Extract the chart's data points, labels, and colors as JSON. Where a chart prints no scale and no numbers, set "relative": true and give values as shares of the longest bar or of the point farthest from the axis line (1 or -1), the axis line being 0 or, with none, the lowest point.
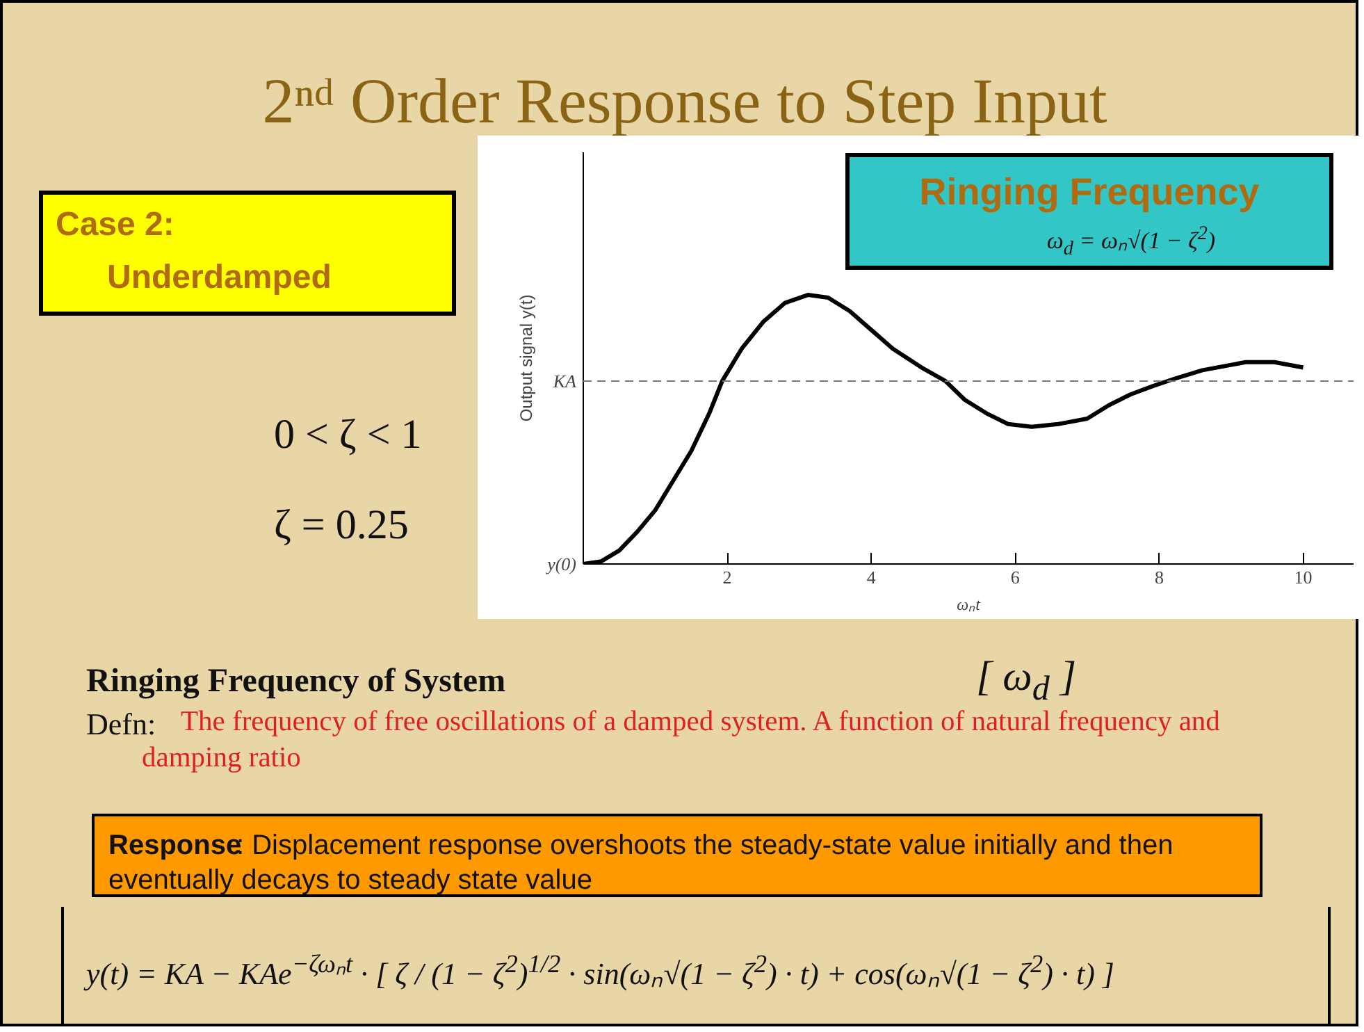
{
  "chart_data": {
    "type": "line",
    "title": "2ⁿᵈ Order Response to Step Input",
    "xlabel": "ωₙt",
    "ylabel": "Output signal y(t)",
    "x": [
      0,
      0.25,
      0.5,
      0.75,
      1.0,
      1.25,
      1.5,
      1.75,
      1.93,
      2.2,
      2.5,
      2.8,
      3.12,
      3.4,
      3.7,
      4.0,
      4.3,
      4.7,
      5.03,
      5.3,
      5.6,
      5.9,
      6.23,
      6.6,
      7.0,
      7.3,
      7.6,
      7.9,
      8.23,
      8.6,
      9.2,
      9.6,
      10.0
    ],
    "series": [
      {
        "color": "#000000",
        "values": [
          0,
          0.01,
          0.05,
          0.12,
          0.2,
          0.31,
          0.42,
          0.56,
          0.68,
          0.8,
          0.9,
          0.97,
          1,
          0.99,
          0.94,
          0.87,
          0.8,
          0.73,
          0.68,
          0.61,
          0.56,
          0.52,
          0.51,
          0.52,
          0.54,
          0.59,
          0.63,
          0.66,
          0.69,
          0.72,
          0.75,
          0.75,
          0.73
        ]
      }
    ],
    "relative": true,
    "xlim": [
      0,
      10.7
    ],
    "xticks": [
      2,
      4,
      6,
      8,
      10
    ],
    "ref_lines": [
      {
        "axis": "y",
        "value": 0.68,
        "label": "KA",
        "color": "#777777",
        "line_style": "dashed"
      }
    ],
    "grid": false,
    "marker": "none",
    "line_style": "solid",
    "annotations": [
      {
        "text": "y(0)",
        "x": 0,
        "y": 0
      },
      "Case 2:",
      "Underdamped",
      "0 < ζ < 1",
      "ζ = 0.25",
      "Ringing Frequency",
      "ω$_{d}$ = ωₙ√(1 − ζ$^{2}$)",
      "Ringing Frequency of System",
      "[ ω$_{d}$ ]",
      "Defn:",
      "The frequency of free oscillations of a damped system.  A function of natural frequency and damping ratio",
      "Response",
      ":   Displacement response overshoots the steady-state value initially and then eventually decays to steady state value",
      "y(t) = KA − KAe$^{−ζωₙt}$ · [ ζ / (1 − ζ$^{2}$)$^{1/2}$ · sin(ωₙ√(1 − ζ$^{2}$) · t) + cos(ωₙ√(1 − ζ$^{2}$) · t) ]"
    ]
  }
}
